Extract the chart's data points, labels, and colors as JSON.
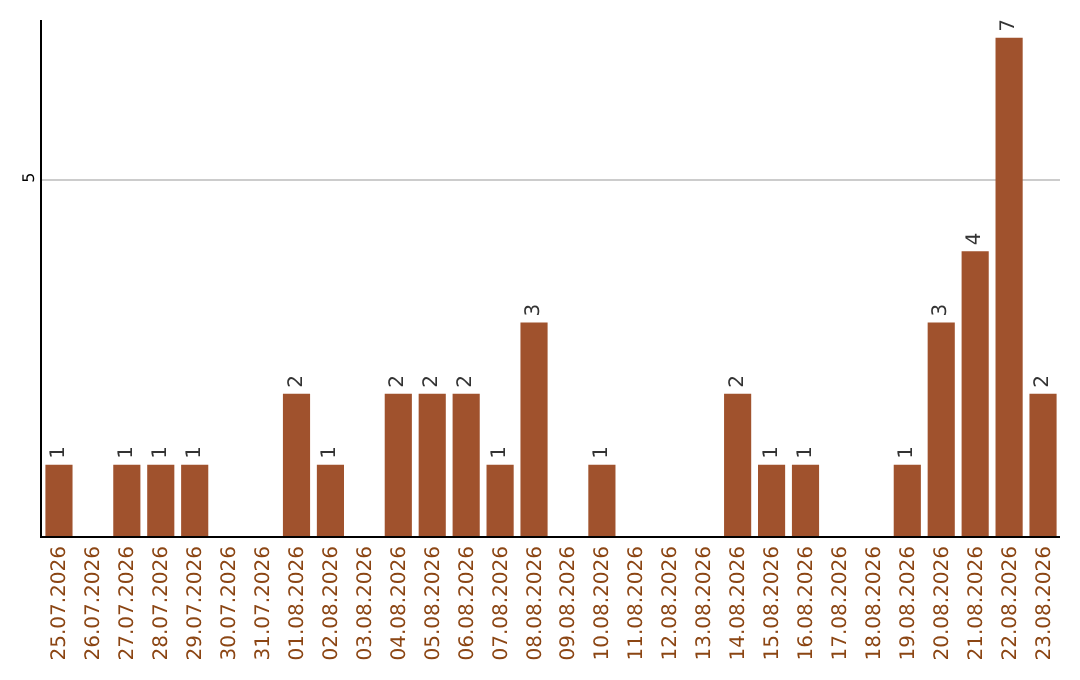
{
  "chart_data": {
    "type": "bar",
    "categories": [
      "25.07.2026",
      "26.07.2026",
      "27.07.2026",
      "28.07.2026",
      "29.07.2026",
      "30.07.2026",
      "31.07.2026",
      "01.08.2026",
      "02.08.2026",
      "03.08.2026",
      "04.08.2026",
      "05.08.2026",
      "06.08.2026",
      "07.08.2026",
      "08.08.2026",
      "09.08.2026",
      "10.08.2026",
      "11.08.2026",
      "12.08.2026",
      "13.08.2026",
      "14.08.2026",
      "15.08.2026",
      "16.08.2026",
      "17.08.2026",
      "18.08.2026",
      "19.08.2026",
      "20.08.2026",
      "21.08.2026",
      "22.08.2026",
      "23.08.2026"
    ],
    "values": [
      1,
      0,
      1,
      1,
      1,
      0,
      0,
      2,
      1,
      0,
      2,
      2,
      2,
      1,
      3,
      0,
      1,
      0,
      0,
      0,
      2,
      1,
      1,
      0,
      0,
      1,
      3,
      4,
      7,
      2
    ],
    "value_labels": [
      "1",
      null,
      "1",
      "1",
      "1",
      null,
      null,
      "2",
      "1",
      null,
      "2",
      "2",
      "2",
      "1",
      "3",
      null,
      "1",
      null,
      null,
      null,
      "2",
      "1",
      "1",
      null,
      null,
      "1",
      "3",
      "4",
      "7",
      "2"
    ],
    "color": "#a0522d",
    "ylim": [
      0,
      7.25
    ],
    "yticks": [
      5
    ],
    "grid": "y",
    "legend": false
  }
}
